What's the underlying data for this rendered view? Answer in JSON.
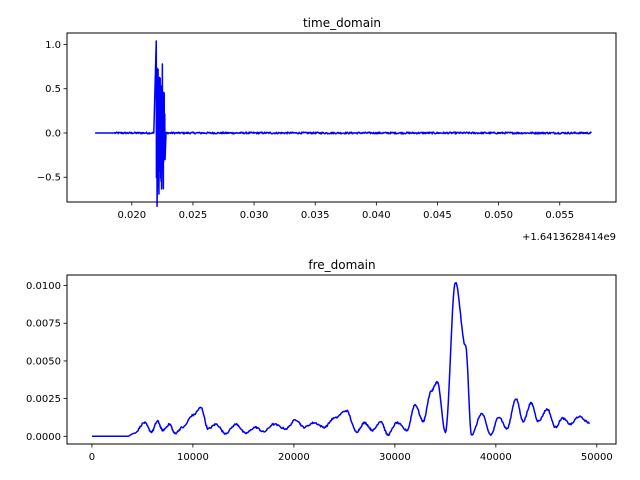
{
  "chart_data": [
    {
      "type": "line",
      "title": "time_domain",
      "xlabel": "",
      "ylabel": "",
      "x_offset_label": "+1.6413628414e9",
      "xlim": [
        0.0147,
        0.0596
      ],
      "ylim": [
        -0.78,
        1.13
      ],
      "grid": false,
      "legend": "none",
      "x_ticks": [
        0.02,
        0.025,
        0.03,
        0.035,
        0.04,
        0.045,
        0.05,
        0.055
      ],
      "x_tick_labels": [
        "0.020",
        "0.025",
        "0.030",
        "0.035",
        "0.040",
        "0.045",
        "0.050",
        "0.055"
      ],
      "y_ticks": [
        -0.5,
        0.0,
        0.5,
        1.0
      ],
      "y_tick_labels": [
        "−0.5",
        "0.0",
        "0.5",
        "1.0"
      ],
      "series": [
        {
          "color": "#0000ff",
          "x_start": 0.017,
          "x_end": 0.0576,
          "baseline": 0.0,
          "burst": {
            "x_start": 0.0218,
            "x_end": 0.0228,
            "max": 1.04,
            "min": -0.69,
            "peaks": [
              {
                "x": 0.022,
                "y": 1.04
              },
              {
                "x": 0.02208,
                "y": -0.66
              },
              {
                "x": 0.02215,
                "y": 0.72
              },
              {
                "x": 0.02222,
                "y": -0.69
              },
              {
                "x": 0.02232,
                "y": 0.62
              },
              {
                "x": 0.0224,
                "y": -0.55
              },
              {
                "x": 0.0225,
                "y": 0.78
              },
              {
                "x": 0.02258,
                "y": -0.63
              },
              {
                "x": 0.02265,
                "y": 0.45
              },
              {
                "x": 0.02272,
                "y": -0.3
              }
            ]
          },
          "noise_amplitude": 0.01
        }
      ]
    },
    {
      "type": "line",
      "title": "fre_domain",
      "xlabel": "",
      "ylabel": "",
      "xlim": [
        -2470,
        51900
      ],
      "ylim": [
        -0.00051,
        0.0107
      ],
      "grid": false,
      "legend": "none",
      "x_ticks": [
        0,
        10000,
        20000,
        30000,
        40000,
        50000
      ],
      "x_tick_labels": [
        "0",
        "10000",
        "20000",
        "30000",
        "40000",
        "50000"
      ],
      "y_ticks": [
        0.0,
        0.0025,
        0.005,
        0.0075,
        0.01
      ],
      "y_tick_labels": [
        "0.0000",
        "0.0025",
        "0.0050",
        "0.0075",
        "0.0100"
      ],
      "series": [
        {
          "color": "#0000ff",
          "x": [
            0,
            3500,
            4200,
            5200,
            5900,
            6500,
            7000,
            7700,
            8200,
            9000,
            10000,
            10800,
            11500,
            12300,
            13200,
            14300,
            15200,
            16200,
            17000,
            18000,
            19200,
            20200,
            21000,
            22000,
            23000,
            24000,
            25200,
            26200,
            27000,
            27800,
            28600,
            29300,
            30200,
            31200,
            32000,
            32800,
            33600,
            34200,
            35000,
            36000,
            37000,
            37600,
            38600,
            39500,
            40300,
            41100,
            42000,
            42700,
            43500,
            44200,
            45100,
            45900,
            46600,
            47400,
            48200,
            49300
          ],
          "values": [
            0.0,
            0.0,
            0.0002,
            0.0009,
            0.0003,
            0.001,
            0.0004,
            0.0008,
            0.0002,
            0.0006,
            0.0014,
            0.0019,
            0.0005,
            0.0008,
            0.0002,
            0.0008,
            0.0002,
            0.0006,
            0.0003,
            0.0008,
            0.0005,
            0.0011,
            0.0006,
            0.0009,
            0.0006,
            0.0012,
            0.0017,
            0.0003,
            0.0009,
            0.0004,
            0.001,
            0.0001,
            0.0009,
            0.0004,
            0.0021,
            0.001,
            0.003,
            0.0036,
            0.0003,
            0.0102,
            0.006,
            0.0001,
            0.0015,
            0.0001,
            0.0013,
            0.0005,
            0.0025,
            0.001,
            0.0022,
            0.001,
            0.0018,
            0.0006,
            0.0012,
            0.0008,
            0.0013,
            0.0009
          ]
        }
      ]
    }
  ]
}
